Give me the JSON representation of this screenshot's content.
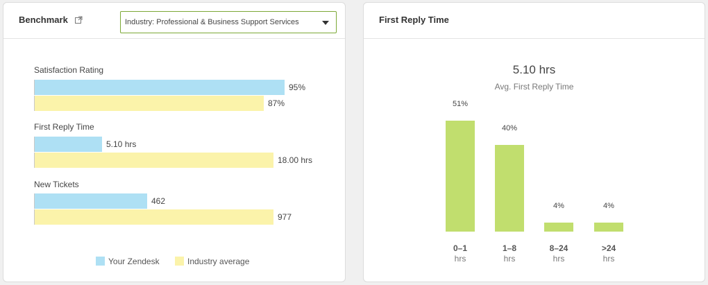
{
  "benchmark": {
    "title": "Benchmark",
    "dropdown": {
      "selected": "Industry: Professional & Business Support Services"
    },
    "metrics": [
      {
        "label": "Satisfaction Rating",
        "yours": {
          "value": 95,
          "display": "95%"
        },
        "industry": {
          "value": 87,
          "display": "87%"
        }
      },
      {
        "label": "First Reply Time",
        "yours": {
          "value": 5.1,
          "display": "5.10 hrs"
        },
        "industry": {
          "value": 18.0,
          "display": "18.00 hrs"
        }
      },
      {
        "label": "New Tickets",
        "yours": {
          "value": 462,
          "display": "462"
        },
        "industry": {
          "value": 977,
          "display": "977"
        }
      }
    ],
    "legend": {
      "yours": "Your Zendesk",
      "industry": "Industry average"
    },
    "colors": {
      "yours": "#aee0f4",
      "industry": "#fbf3aa",
      "dropdown_border": "#7ba835"
    },
    "icon": "external-link-icon"
  },
  "first_reply": {
    "title": "First Reply Time",
    "value": "5.10 hrs",
    "subtitle": "Avg. First Reply Time",
    "bar_color": "#c1de6e",
    "chart_data": {
      "type": "bar",
      "categories": [
        "0–1 hrs",
        "1–8 hrs",
        "8–24 hrs",
        ">24 hrs"
      ],
      "values": [
        51,
        40,
        4,
        4
      ],
      "value_labels": [
        "51%",
        "40%",
        "4%",
        "4%"
      ],
      "category_top": [
        "0–1",
        "1–8",
        "8–24",
        ">24"
      ],
      "category_bottom": [
        "hrs",
        "hrs",
        "hrs",
        "hrs"
      ]
    }
  }
}
